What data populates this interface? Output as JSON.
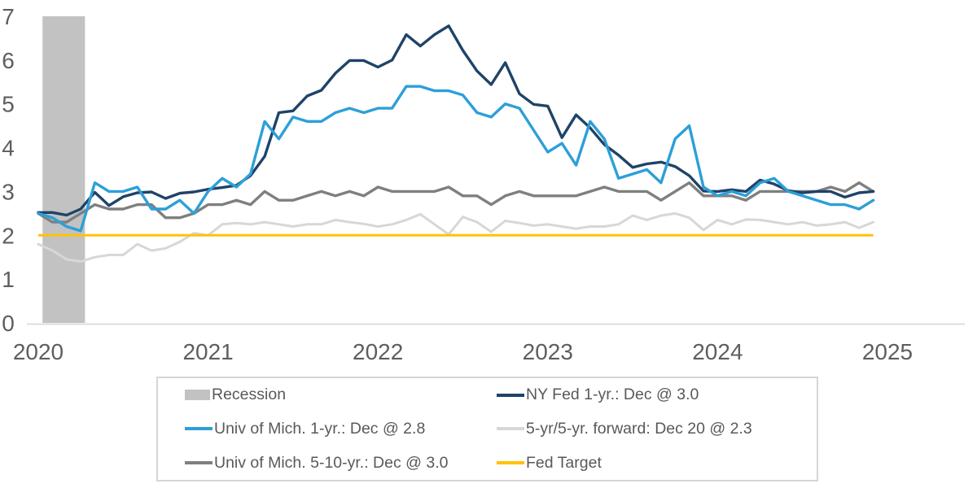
{
  "chart_data": {
    "type": "line",
    "title": "",
    "x_unit": "month",
    "x_range": [
      "2020-01",
      "2024-12"
    ],
    "ylim": [
      0,
      7
    ],
    "yticks": [
      0,
      1,
      2,
      3,
      4,
      5,
      6,
      7
    ],
    "xticks": [
      {
        "label": "2020",
        "month": 0
      },
      {
        "label": "2021",
        "month": 12
      },
      {
        "label": "2022",
        "month": 24
      },
      {
        "label": "2023",
        "month": 36
      },
      {
        "label": "2024",
        "month": 48
      },
      {
        "label": "2025",
        "month": 60
      }
    ],
    "grid": false,
    "legend_position": "bottom",
    "axis": {
      "tick_color": "#5E5E5E",
      "line_color": "#DCDCDC"
    },
    "recession_band": {
      "label": "Recession",
      "start_month": 0.3,
      "end_month": 3.3,
      "color": "#C2C2C2"
    },
    "fed_target": {
      "label": "Fed Target",
      "value": 2.0,
      "color": "#FFC205"
    },
    "series": [
      {
        "id": "breakeven",
        "name": "5-yr/5-yr. forward: Dec 20 @ 2.3",
        "color": "#D7D7D7",
        "stroke_width": 3,
        "values": [
          1.8,
          1.65,
          1.45,
          1.4,
          1.5,
          1.55,
          1.55,
          1.8,
          1.65,
          1.7,
          1.85,
          2.05,
          2.0,
          2.25,
          2.28,
          2.25,
          2.3,
          2.25,
          2.2,
          2.25,
          2.25,
          2.35,
          2.3,
          2.26,
          2.2,
          2.25,
          2.35,
          2.48,
          2.25,
          2.02,
          2.42,
          2.3,
          2.08,
          2.33,
          2.28,
          2.22,
          2.25,
          2.2,
          2.15,
          2.2,
          2.2,
          2.25,
          2.45,
          2.35,
          2.45,
          2.5,
          2.4,
          2.12,
          2.35,
          2.25,
          2.36,
          2.35,
          2.3,
          2.25,
          2.3,
          2.22,
          2.25,
          2.3,
          2.17,
          2.3
        ]
      },
      {
        "id": "umich_5_10yr",
        "name": "Univ of Mich. 5-10-yr.: Dec @ 3.0",
        "color": "#7F7F7F",
        "stroke_width": 3.4,
        "values": [
          2.5,
          2.3,
          2.3,
          2.5,
          2.7,
          2.6,
          2.6,
          2.7,
          2.7,
          2.4,
          2.4,
          2.5,
          2.7,
          2.7,
          2.8,
          2.7,
          3.0,
          2.8,
          2.8,
          2.9,
          3.0,
          2.9,
          3.0,
          2.9,
          3.1,
          3.0,
          3.0,
          3.0,
          3.0,
          3.1,
          2.9,
          2.9,
          2.7,
          2.9,
          3.0,
          2.9,
          2.9,
          2.9,
          2.9,
          3.0,
          3.1,
          3.0,
          3.0,
          3.0,
          2.8,
          3.0,
          3.2,
          2.9,
          2.9,
          2.9,
          2.8,
          3.0,
          3.0,
          3.0,
          3.0,
          3.0,
          3.1,
          3.0,
          3.2,
          3.0
        ]
      },
      {
        "id": "ny_fed_1yr",
        "name": "NY Fed 1-yr.: Dec @ 3.0",
        "color": "#1F4368",
        "stroke_width": 3.4,
        "values": [
          2.52,
          2.52,
          2.46,
          2.6,
          2.98,
          2.68,
          2.88,
          2.97,
          2.99,
          2.84,
          2.96,
          2.99,
          3.05,
          3.09,
          3.14,
          3.36,
          3.8,
          4.8,
          4.84,
          5.18,
          5.31,
          5.7,
          5.99,
          5.99,
          5.84,
          6.0,
          6.58,
          6.32,
          6.58,
          6.78,
          6.22,
          5.75,
          5.44,
          5.94,
          5.23,
          4.99,
          4.95,
          4.23,
          4.75,
          4.45,
          4.07,
          3.83,
          3.55,
          3.63,
          3.67,
          3.57,
          3.36,
          3.01,
          3.0,
          3.04,
          3.0,
          3.26,
          3.17,
          3.02,
          2.97,
          3.0,
          3.0,
          2.87,
          2.97,
          3.0
        ]
      },
      {
        "id": "umich_1yr",
        "name": "Univ of Mich. 1-yr.: Dec @ 2.8",
        "color": "#2D9FD8",
        "stroke_width": 3.4,
        "values": [
          2.5,
          2.4,
          2.2,
          2.1,
          3.2,
          3.0,
          3.0,
          3.1,
          2.6,
          2.6,
          2.8,
          2.5,
          3.0,
          3.3,
          3.1,
          3.4,
          4.6,
          4.2,
          4.7,
          4.6,
          4.6,
          4.8,
          4.9,
          4.8,
          4.9,
          4.9,
          5.4,
          5.4,
          5.3,
          5.3,
          5.2,
          4.8,
          4.7,
          5.0,
          4.9,
          4.4,
          3.9,
          4.1,
          3.6,
          4.6,
          4.2,
          3.3,
          3.4,
          3.5,
          3.2,
          4.2,
          4.5,
          3.1,
          2.9,
          3.0,
          2.9,
          3.2,
          3.3,
          3.0,
          2.9,
          2.8,
          2.7,
          2.7,
          2.6,
          2.8
        ]
      }
    ]
  },
  "legend": {
    "items": [
      {
        "label": "Recession",
        "color": "#C2C2C2",
        "swatch": "patch"
      },
      {
        "label": "NY Fed 1-yr.: Dec @ 3.0",
        "color": "#1F4368",
        "swatch": "line"
      },
      {
        "label": "Univ of Mich. 1-yr.: Dec @ 2.8",
        "color": "#2D9FD8",
        "swatch": "line"
      },
      {
        "label": "5-yr/5-yr. forward: Dec 20 @ 2.3",
        "color": "#D7D7D7",
        "swatch": "line"
      },
      {
        "label": "Univ of Mich. 5-10-yr.: Dec @ 3.0",
        "color": "#7F7F7F",
        "swatch": "line"
      },
      {
        "label": "Fed Target",
        "color": "#FFC205",
        "swatch": "line"
      }
    ]
  }
}
